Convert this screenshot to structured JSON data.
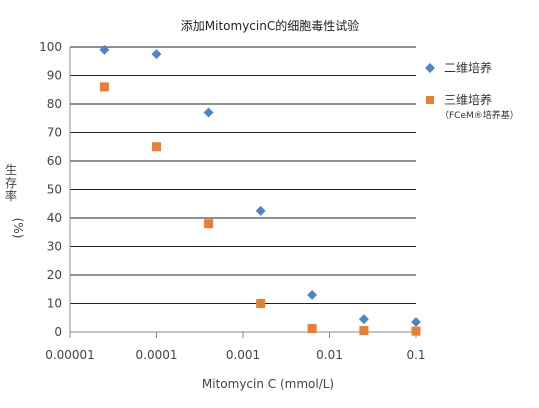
{
  "chart_data": {
    "type": "scatter",
    "title": "添加MitomycinC的细胞毒性试验",
    "xlabel": "Mitomycin C (mmol/L)",
    "ylabel_chars": [
      "生",
      "存",
      "率"
    ],
    "ylabel_unit": "(%)",
    "x_scale": "log",
    "xlim": [
      1e-05,
      0.1
    ],
    "x_ticks": [
      1e-05,
      0.0001,
      0.001,
      0.01,
      0.1
    ],
    "x_tick_labels": [
      "0.00001",
      "0.0001",
      "0.001",
      "0.01",
      "0.1"
    ],
    "ylim": [
      0,
      100
    ],
    "y_ticks": [
      0,
      10,
      20,
      30,
      40,
      50,
      60,
      70,
      80,
      90,
      100
    ],
    "y_tick_labels": [
      "0",
      "10",
      "20",
      "30",
      "40",
      "50",
      "60",
      "70",
      "80",
      "90",
      "100"
    ],
    "grid": "horizontal",
    "legend_position": "right",
    "series": [
      {
        "name": "二维培养",
        "marker": "diamond",
        "color": "#4a86c8",
        "x": [
          2.5e-05,
          0.0001,
          0.0004,
          0.0016,
          0.0063,
          0.025,
          0.1
        ],
        "y": [
          99,
          97.5,
          77,
          42.5,
          13,
          4.5,
          3.5
        ]
      },
      {
        "name": "三维培养",
        "subtitle": "（FCeM®培养基）",
        "marker": "square",
        "color": "#ed7d31",
        "x": [
          2.5e-05,
          0.0001,
          0.0004,
          0.0016,
          0.0063,
          0.025,
          0.1
        ],
        "y": [
          86,
          65,
          38,
          10,
          1.2,
          0.5,
          0.3
        ]
      }
    ]
  }
}
